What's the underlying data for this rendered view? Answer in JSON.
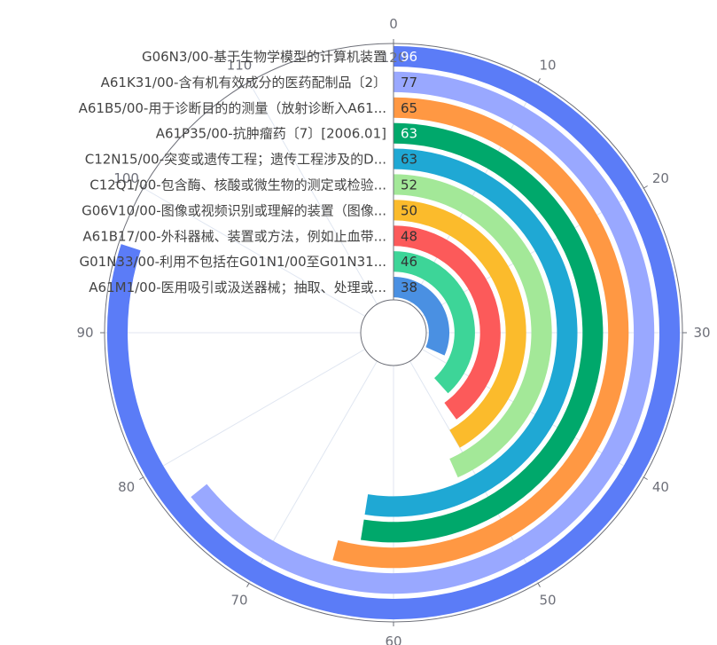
{
  "chart_data": {
    "type": "bar",
    "subtype": "polar-radial-bar",
    "angle_axis": {
      "min": 0,
      "max": 120,
      "ticks": [
        0,
        10,
        20,
        30,
        40,
        50,
        60,
        70,
        80,
        90,
        100,
        110,
        120
      ]
    },
    "categories": [
      "A61M1/00-医用吸引或汲送器械；抽取、处理或...",
      "G01N33/00-利用不包括在G01N1/00至G01N31...",
      "A61B17/00-外科器械、装置或方法，例如止血带...",
      "G06V10/00-图像或视频识别或理解的装置（图像...",
      "C12Q1/00-包含酶、核酸或微生物的测定或检验...",
      "C12N15/00-突变或遗传工程；遗传工程涉及的D...",
      "A61P35/00-抗肿瘤药〔7〕[2006.01]",
      "A61B5/00-用于诊断目的的测量（放射诊断入A61...",
      "A61K31/00-含有机有效成分的医药配制品〔2〕",
      "G06N3/00-基于生物学模型的计算机装置"
    ],
    "values": [
      38,
      46,
      48,
      50,
      52,
      63,
      63,
      65,
      77,
      96
    ],
    "colors": [
      "#4a90e2",
      "#3dd598",
      "#fc5a5a",
      "#fbbb2c",
      "#a3e898",
      "#1fa8d4",
      "#00a86b",
      "#ff9843",
      "#99a8ff",
      "#5b7cf7"
    ],
    "value_label_colors": [
      "#333333",
      "#333333",
      "#333333",
      "#333333",
      "#333333",
      "#333333",
      "#ffffff",
      "#333333",
      "#333333",
      "#ffffff"
    ],
    "grid": true
  }
}
